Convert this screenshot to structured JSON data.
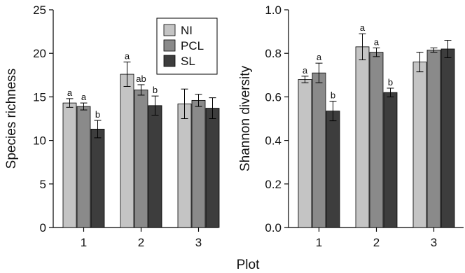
{
  "figure": {
    "shared_xlabel": "Plot"
  },
  "legend": [
    {
      "label": "NI",
      "color": "#c4c4c4"
    },
    {
      "label": "PCL",
      "color": "#8a8a8a"
    },
    {
      "label": "SL",
      "color": "#3d3d3d"
    }
  ],
  "chart_data": [
    {
      "type": "bar",
      "title": "",
      "xlabel": "",
      "ylabel": "Species richness",
      "categories": [
        "1",
        "2",
        "3"
      ],
      "ylim": [
        0,
        25
      ],
      "yticks": [
        "0",
        "5",
        "10",
        "15",
        "20",
        "25"
      ],
      "grid": false,
      "legend_position": "top-right",
      "series": [
        {
          "name": "NI",
          "color": "#c4c4c4",
          "values": [
            14.3,
            17.6,
            14.2
          ],
          "errors": [
            0.5,
            1.4,
            1.7
          ],
          "labels": [
            "a",
            "a",
            ""
          ]
        },
        {
          "name": "PCL",
          "color": "#8a8a8a",
          "values": [
            13.9,
            15.8,
            14.6
          ],
          "errors": [
            0.4,
            0.6,
            0.7
          ],
          "labels": [
            "a",
            "ab",
            ""
          ]
        },
        {
          "name": "SL",
          "color": "#3d3d3d",
          "values": [
            11.3,
            14.0,
            13.7
          ],
          "errors": [
            1.0,
            1.1,
            1.2
          ],
          "labels": [
            "b",
            "b",
            ""
          ]
        }
      ]
    },
    {
      "type": "bar",
      "title": "",
      "xlabel": "",
      "ylabel": "Shannon diversity",
      "categories": [
        "1",
        "2",
        "3"
      ],
      "ylim": [
        0,
        1.0
      ],
      "yticks": [
        "0.0",
        "0.2",
        "0.4",
        "0.6",
        "0.8",
        "1.0"
      ],
      "grid": false,
      "series": [
        {
          "name": "NI",
          "color": "#c4c4c4",
          "values": [
            0.68,
            0.83,
            0.76
          ],
          "errors": [
            0.015,
            0.06,
            0.045
          ],
          "labels": [
            "a",
            "a",
            ""
          ]
        },
        {
          "name": "PCL",
          "color": "#8a8a8a",
          "values": [
            0.71,
            0.805,
            0.815
          ],
          "errors": [
            0.045,
            0.02,
            0.01
          ],
          "labels": [
            "a",
            "a",
            ""
          ]
        },
        {
          "name": "SL",
          "color": "#3d3d3d",
          "values": [
            0.535,
            0.62,
            0.82
          ],
          "errors": [
            0.045,
            0.02,
            0.04
          ],
          "labels": [
            "b",
            "b",
            ""
          ]
        }
      ]
    }
  ]
}
